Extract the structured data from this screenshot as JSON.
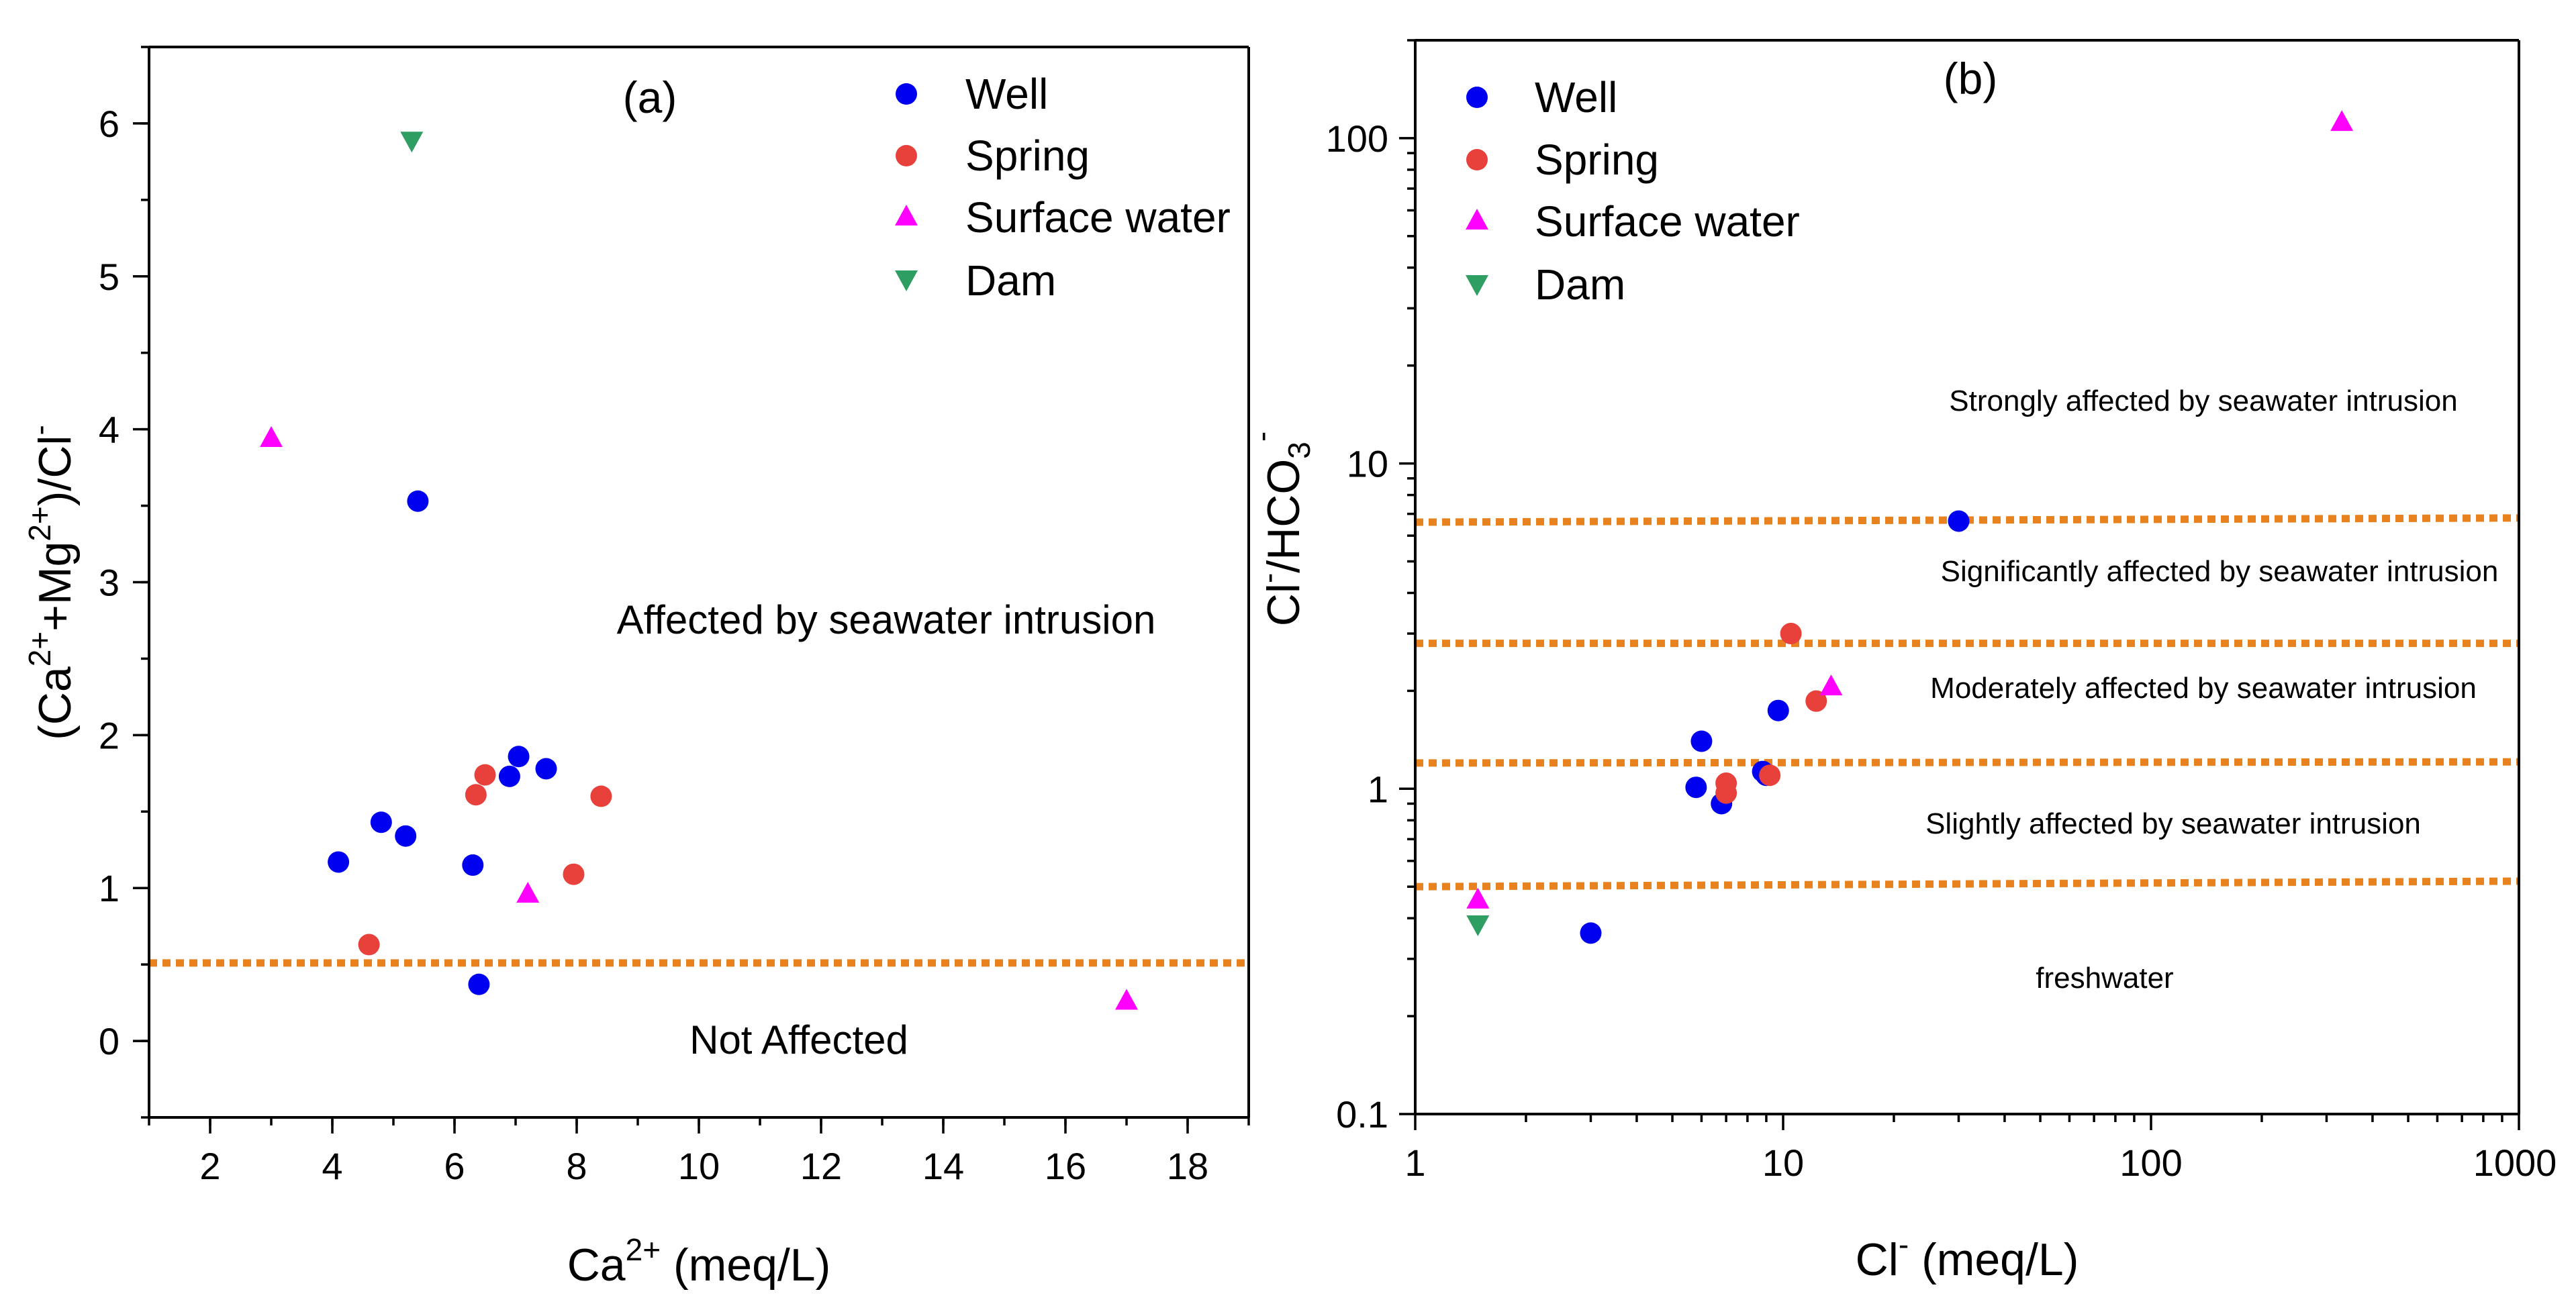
{
  "colors": {
    "well": "#0000f0",
    "spring": "#e8413c",
    "surface_water": "#ff00ff",
    "dam": "#2e9e62",
    "threshold": "#e8821e"
  },
  "legend": [
    "Well",
    "Spring",
    "Surface water",
    "Dam"
  ],
  "chart_data": [
    {
      "type": "scatter",
      "panel_label": "(a)",
      "title": "",
      "xlabel": {
        "base": "Ca",
        "sup": "2+",
        "rest": " (meq/L)"
      },
      "ylabel": {
        "p1": "(Ca",
        "s1": "2+",
        "p2": "+Mg",
        "s2": "2+",
        "p3": ")/Cl",
        "s3": "-"
      },
      "xlim": [
        1,
        19
      ],
      "ylim": [
        -0.5,
        6.5
      ],
      "xscale": "linear",
      "yscale": "linear",
      "xticks": [
        2,
        4,
        6,
        8,
        10,
        12,
        14,
        16,
        18
      ],
      "xtick_labels": [
        "2",
        "4",
        "6",
        "8",
        "10",
        "12",
        "14",
        "16",
        "18"
      ],
      "yticks": [
        0,
        1,
        2,
        3,
        4,
        5,
        6
      ],
      "ytick_labels": [
        "0",
        "1",
        "2",
        "3",
        "4",
        "5",
        "6"
      ],
      "legend_position": "top-right",
      "series": [
        {
          "name": "Well",
          "marker": "circle",
          "points": [
            [
              4.1,
              1.17
            ],
            [
              4.8,
              1.43
            ],
            [
              5.2,
              1.34
            ],
            [
              5.4,
              3.53
            ],
            [
              6.3,
              1.15
            ],
            [
              6.4,
              0.37
            ],
            [
              6.9,
              1.73
            ],
            [
              7.05,
              1.86
            ],
            [
              7.5,
              1.78
            ]
          ]
        },
        {
          "name": "Spring",
          "marker": "circle",
          "points": [
            [
              4.6,
              0.63
            ],
            [
              6.35,
              1.61
            ],
            [
              6.5,
              1.74
            ],
            [
              7.95,
              1.09
            ],
            [
              8.4,
              1.6
            ]
          ]
        },
        {
          "name": "Surface water",
          "marker": "triangle-up",
          "points": [
            [
              3.0,
              3.95
            ],
            [
              7.2,
              0.97
            ],
            [
              17.0,
              0.27
            ]
          ]
        },
        {
          "name": "Dam",
          "marker": "triangle-down",
          "points": [
            [
              5.3,
              5.88
            ]
          ]
        }
      ],
      "threshold_lines": [
        0.51
      ],
      "annotations": [
        "Affected by seawater intrusion",
        "Not Affected"
      ]
    },
    {
      "type": "scatter",
      "panel_label": "(b)",
      "title": "",
      "xlabel": {
        "base": "Cl",
        "sup": "-",
        "rest": " (meq/L)"
      },
      "ylabel": {
        "p1": "Cl",
        "s1": "-",
        "p2": "/HCO",
        "sub": "3",
        "s2": "-"
      },
      "xlim": [
        1,
        1000
      ],
      "ylim": [
        0.1,
        200
      ],
      "xscale": "log",
      "yscale": "log",
      "xticks": [
        1,
        10,
        100,
        1000
      ],
      "xtick_labels": [
        "1",
        "10",
        "100",
        "1000"
      ],
      "yticks": [
        0.1,
        1,
        10,
        100
      ],
      "ytick_labels": [
        "0.1",
        "1",
        "10",
        "100"
      ],
      "legend_position": "top-left",
      "series": [
        {
          "name": "Well",
          "marker": "circle",
          "points": [
            [
              3.0,
              0.36
            ],
            [
              5.8,
              1.01
            ],
            [
              6.0,
              1.4
            ],
            [
              6.8,
              0.9
            ],
            [
              8.8,
              1.13
            ],
            [
              9.0,
              1.1
            ],
            [
              9.7,
              1.74
            ],
            [
              30.0,
              6.65
            ]
          ]
        },
        {
          "name": "Spring",
          "marker": "circle",
          "points": [
            [
              7.0,
              0.97
            ],
            [
              7.0,
              1.04
            ],
            [
              9.2,
              1.1
            ],
            [
              10.5,
              3.0
            ],
            [
              12.3,
              1.86
            ]
          ]
        },
        {
          "name": "Surface water",
          "marker": "triangle-up",
          "points": [
            [
              1.48,
              0.46
            ],
            [
              13.5,
              2.08
            ],
            [
              330.0,
              113.0
            ]
          ]
        },
        {
          "name": "Dam",
          "marker": "triangle-down",
          "points": [
            [
              1.48,
              0.38
            ]
          ]
        }
      ],
      "threshold_lines": [
        0.5,
        1.2,
        2.8,
        6.6
      ],
      "threshold_lines_right": [
        0.52,
        1.21,
        2.8,
        6.8
      ],
      "annotations": [
        "Strongly affected by seawater intrusion",
        "Significantly affected by seawater intrusion",
        "Moderately affected by seawater intrusion",
        "Slightly affected by seawater intrusion",
        "freshwater"
      ]
    }
  ]
}
